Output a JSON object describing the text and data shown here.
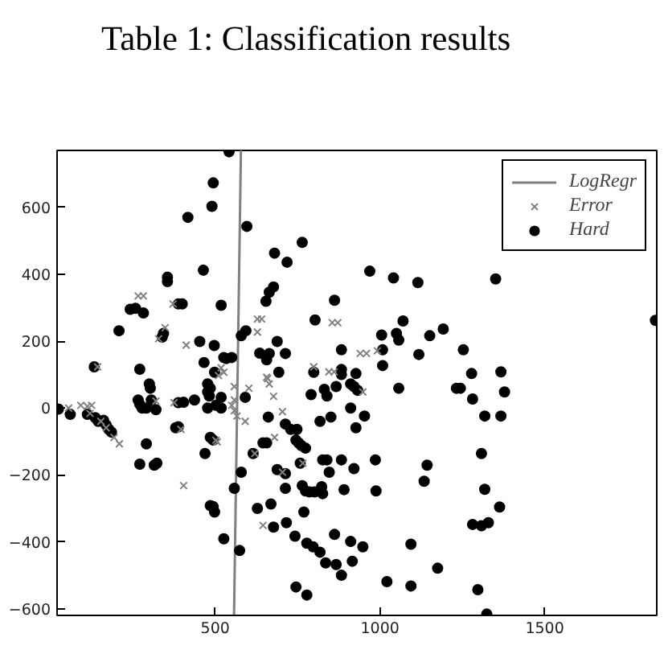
{
  "chart_data": {
    "type": "scatter",
    "title": "Table 1: Classification results",
    "xlim": [
      20,
      1840
    ],
    "ylim": [
      -620,
      770
    ],
    "xticks": [
      500,
      1000,
      1500
    ],
    "yticks": [
      -600,
      -400,
      -200,
      0,
      200,
      400,
      600
    ],
    "grid": false,
    "legend": "top right",
    "series": [
      {
        "name": "LogRegr",
        "type": "line",
        "color": "#808080",
        "x": [
          578,
          557
        ],
        "values": [
          770,
          -620
        ]
      },
      {
        "name": "Error",
        "color": "#808080",
        "marker": "cross",
        "x": [
          266,
          282,
          372,
          348,
          328,
          412,
          143,
          628,
          641,
          628,
          855,
          872,
          940,
          959,
          992,
          799,
          845,
          861,
          518,
          526,
          656,
          55,
          92,
          112,
          125,
          120,
          153,
          169,
          193,
          209,
          320,
          375,
          510,
          396,
          506,
          404,
          558,
          602,
          558,
          550,
          558,
          566,
          591,
          502,
          659,
          664,
          677,
          704,
          948,
          680,
          620,
          766,
          704,
          645
        ],
        "values": [
          335,
          335,
          311,
          240,
          207,
          188,
          123,
          266,
          266,
          227,
          255,
          255,
          163,
          163,
          171,
          123,
          108,
          108,
          120,
          107,
          92,
          0,
          8,
          5,
          8,
          -16,
          -40,
          -59,
          -88,
          -107,
          21,
          16,
          97,
          -64,
          -101,
          -232,
          64,
          59,
          24,
          8,
          -8,
          -24,
          -40,
          -96,
          88,
          72,
          35,
          -11,
          48,
          -88,
          -136,
          -165,
          -192,
          -351
        ]
      },
      {
        "name": "Hard",
        "color": "#000000",
        "marker": "circle",
        "x": [
          494,
          490,
          417,
          464,
          355,
          355,
          388,
          400,
          518,
          242,
          258,
          282,
          208,
          343,
          339,
          453,
          497,
          466,
          526,
          133,
          271,
          542,
          596,
          764,
          680,
          718,
          969,
          1041,
          1115,
          677,
          664,
          654,
          862,
          803,
          1070,
          593,
          579,
          688,
          1005,
          1050,
          1057,
          1151,
          635,
          664,
          656,
          713,
          883,
          1008,
          1118,
          1008,
          550,
          534,
          693,
          799,
          883,
          883,
          927,
          1351,
          1192,
          1253,
          1278,
          1367,
          1836,
          24,
          60,
          112,
          136,
          145,
          161,
          169,
          177,
          185,
          300,
          303,
          306,
          266,
          271,
          278,
          291,
          320,
          291,
          271,
          315,
          323,
          388,
          404,
          437,
          477,
          485,
          477,
          482,
          498,
          477,
          502,
          518,
          388,
          380,
          485,
          494,
          469,
          494,
          485,
          498,
          526,
          591,
          518,
          661,
          791,
          831,
          839,
          867,
          921,
          911,
          932,
          1057,
          911,
          953,
          851,
          818,
          927,
          713,
          729,
          748,
          656,
          645,
          745,
          753,
          761,
          774,
          615,
          758,
          826,
          839,
          883,
          986,
          846,
          921,
          1143,
          1134,
          688,
          713,
          764,
          774,
          786,
          802,
          826,
          823,
          579,
          558,
          713,
          891,
          988,
          628,
          669,
          769,
          677,
          716,
          742,
          778,
          797,
          818,
          835,
          867,
          883,
          862,
          911,
          916,
          948,
          1021,
          1094,
          1094,
          745,
          778,
          574,
          1232,
          1244,
          1281,
          1378,
          1318,
          1367,
          1308,
          1318,
          1363,
          1281,
          1308,
          1329,
          1175,
          1297,
          1324
        ],
        "values": [
          673,
          603,
          570,
          412,
          391,
          378,
          311,
          311,
          307,
          295,
          298,
          284,
          231,
          223,
          212,
          199,
          187,
          136,
          151,
          123,
          116,
          766,
          543,
          495,
          463,
          436,
          409,
          389,
          375,
          362,
          346,
          319,
          322,
          263,
          260,
          231,
          216,
          199,
          218,
          223,
          203,
          216,
          164,
          163,
          144,
          163,
          174,
          174,
          160,
          127,
          151,
          148,
          107,
          107,
          115,
          100,
          103,
          386,
          236,
          174,
          103,
          108,
          262,
          -3,
          -19,
          -19,
          -29,
          -40,
          -37,
          -51,
          -64,
          -72,
          72,
          59,
          24,
          24,
          11,
          0,
          0,
          -5,
          -107,
          -168,
          -171,
          -165,
          16,
          17,
          24,
          72,
          59,
          48,
          36,
          107,
          0,
          8,
          0,
          -56,
          -59,
          -88,
          -96,
          -136,
          -295,
          -292,
          -311,
          -391,
          32,
          32,
          -27,
          40,
          56,
          36,
          64,
          64,
          72,
          53,
          59,
          0,
          -24,
          -27,
          -40,
          -59,
          -48,
          -64,
          -64,
          -104,
          -104,
          -96,
          -104,
          -112,
          -120,
          -136,
          -165,
          -155,
          -155,
          -155,
          -155,
          -192,
          -181,
          -171,
          -219,
          -184,
          -196,
          -232,
          -248,
          -251,
          -251,
          -256,
          -235,
          -192,
          -240,
          -240,
          -244,
          -248,
          -300,
          -287,
          -311,
          -356,
          -343,
          -383,
          -404,
          -415,
          -431,
          -463,
          -468,
          -500,
          -378,
          -399,
          -458,
          -415,
          -519,
          -407,
          -532,
          -535,
          -559,
          -426,
          59,
          59,
          27,
          48,
          -24,
          -24,
          -136,
          -243,
          -296,
          -348,
          -352,
          -343,
          -479,
          -543,
          -616
        ]
      }
    ]
  }
}
